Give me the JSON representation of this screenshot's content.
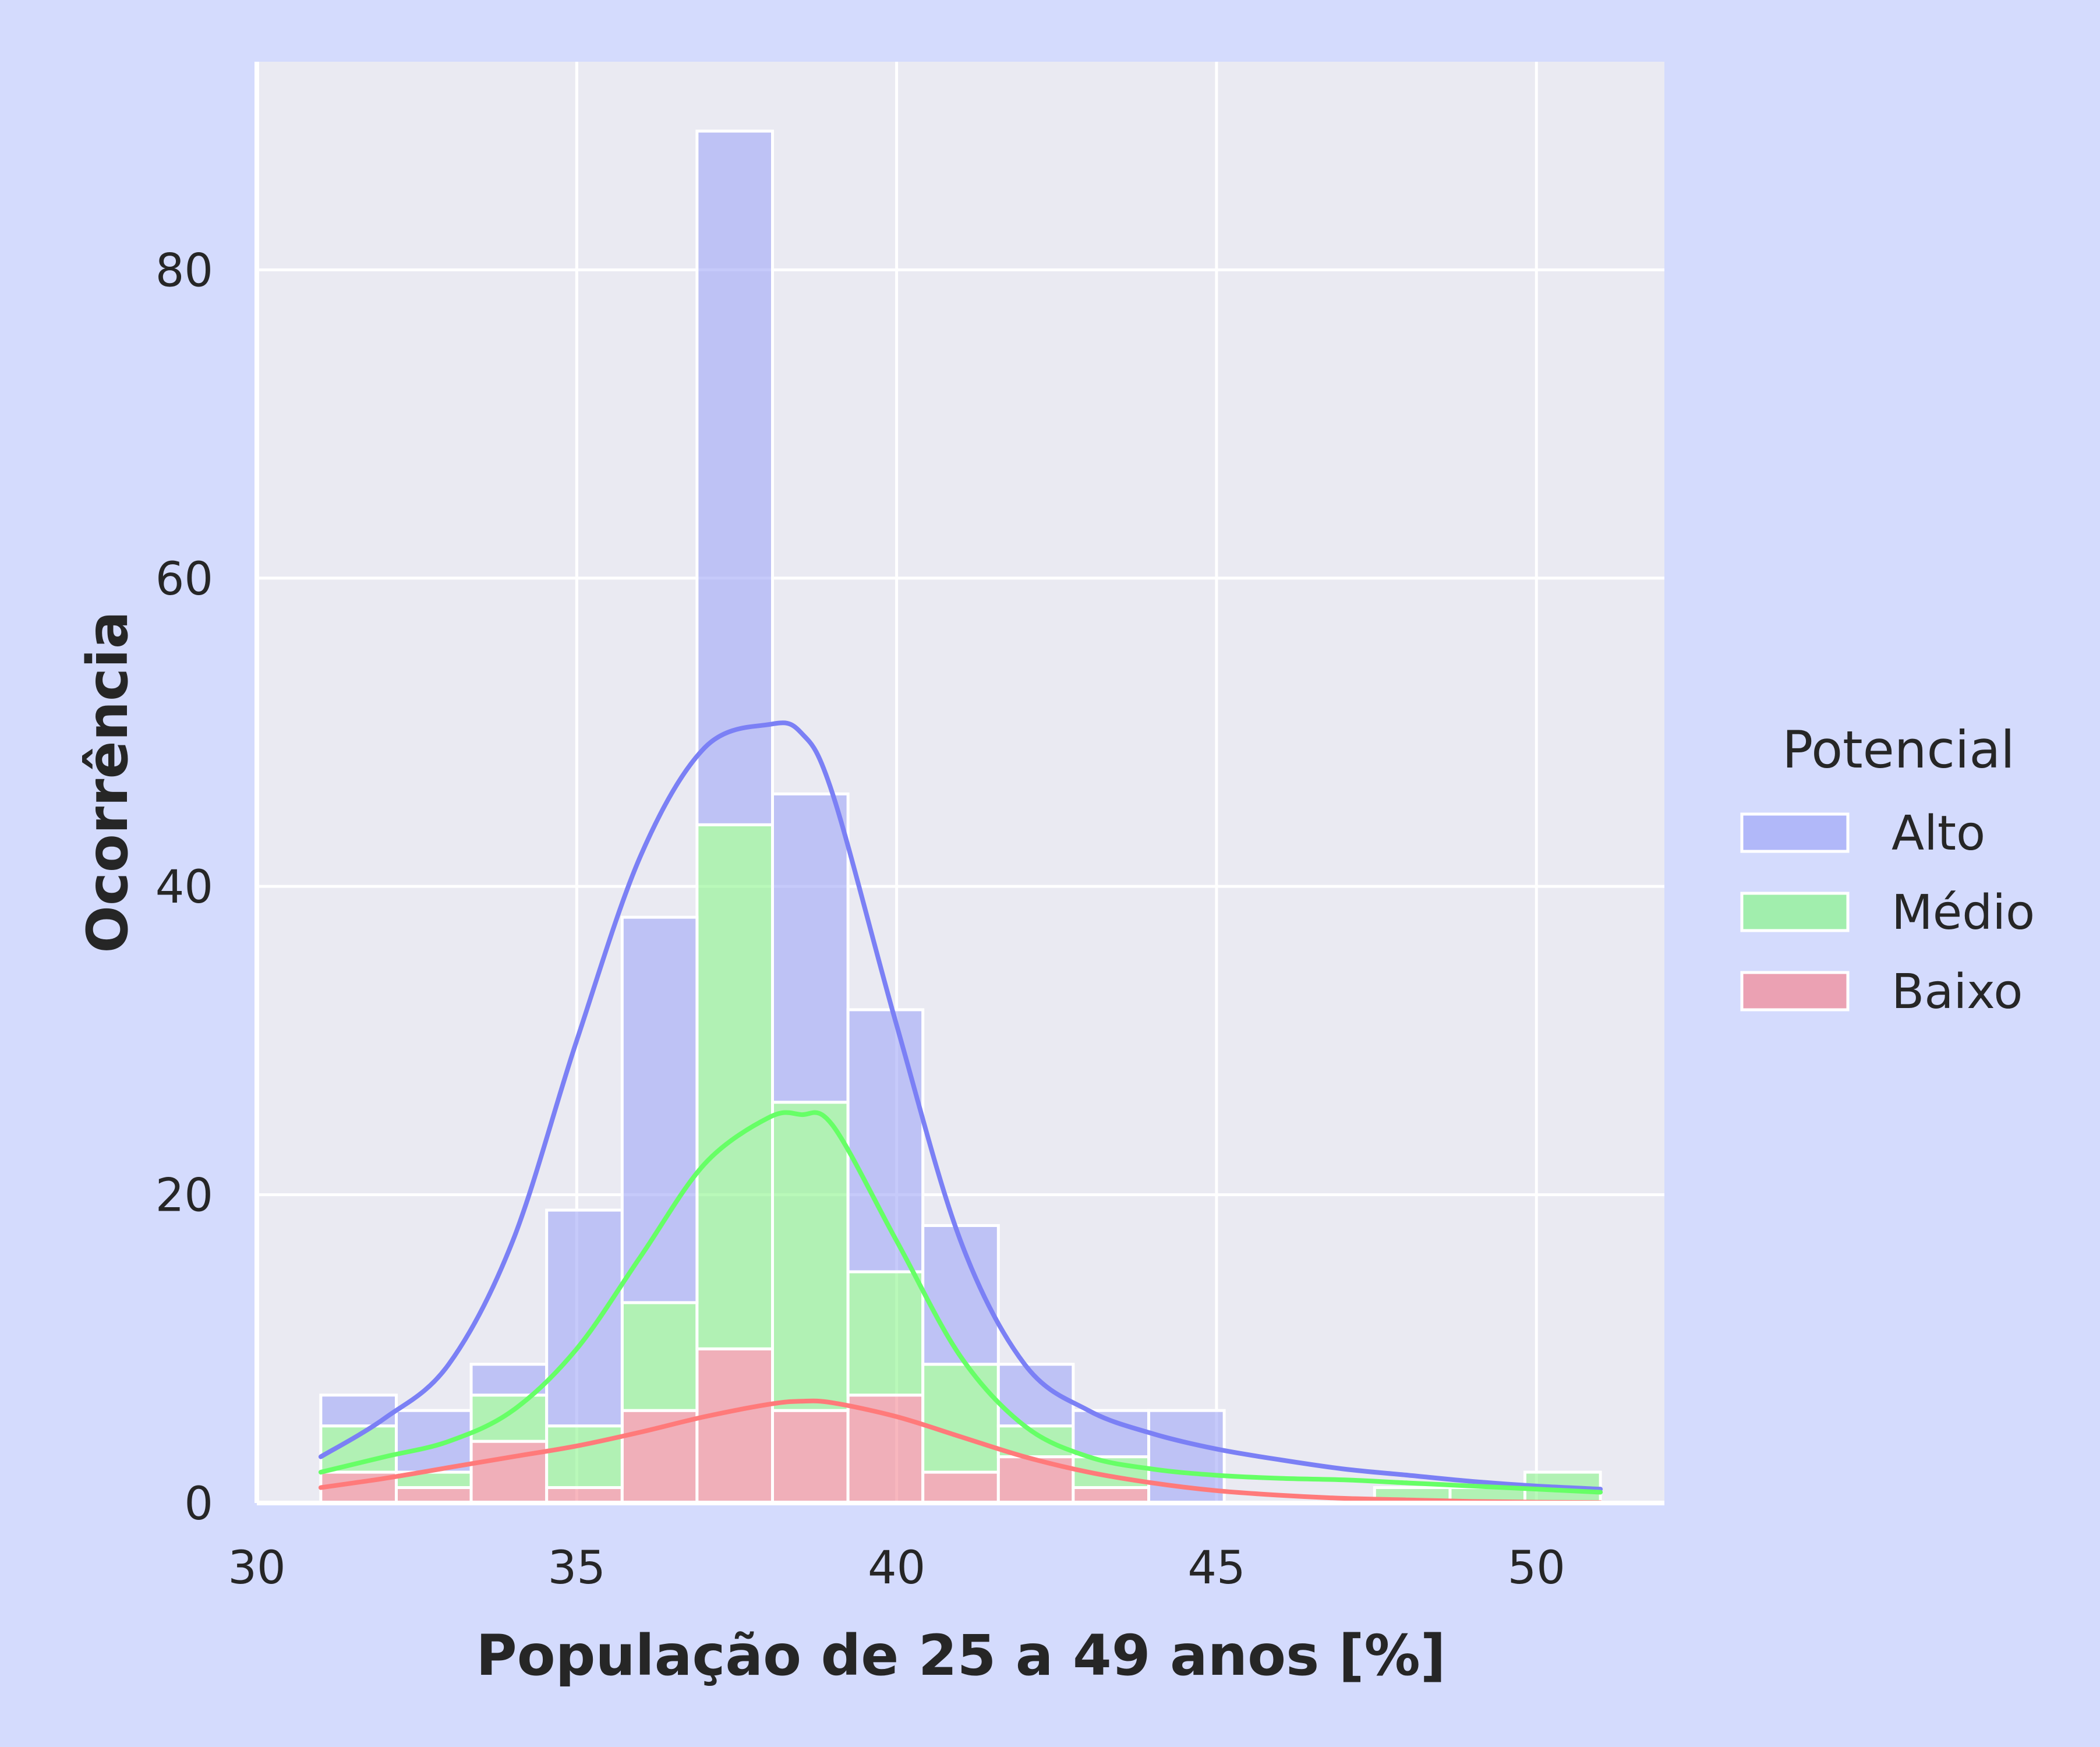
{
  "colors": {
    "figure_background": "#d4dbfd",
    "plot_background": "#eaeaf2",
    "grid": "#ffffff",
    "text": "#262626"
  },
  "chart_data": {
    "type": "bar",
    "subtype": "stacked histogram with kde",
    "xlabel": "População de 25 a 49 anos [%]",
    "ylabel": "Ocorrência",
    "xlim": [
      30,
      52
    ],
    "ylim": [
      0,
      93.5
    ],
    "xticks": [
      "30",
      "35",
      "40",
      "45",
      "50"
    ],
    "yticks": [
      "0",
      "20",
      "40",
      "60",
      "80"
    ],
    "grid": true,
    "legend": {
      "title": "Potencial",
      "position": "right"
    },
    "bin_edges": [
      31.0,
      32.18,
      33.35,
      34.53,
      35.71,
      36.88,
      38.06,
      39.24,
      40.41,
      41.59,
      42.76,
      43.94,
      45.12,
      46.29,
      47.47,
      48.65,
      49.82,
      51.0
    ],
    "series": [
      {
        "name": "Baixo",
        "color": "#f48a96",
        "line_color": "#ff7a7a",
        "counts": [
          2,
          1,
          4,
          1,
          6,
          10,
          6,
          7,
          2,
          3,
          1,
          0,
          0,
          0,
          0,
          0,
          0
        ]
      },
      {
        "name": "Médio",
        "color": "#8ef58e",
        "line_color": "#66ff66",
        "counts": [
          3,
          1,
          3,
          4,
          7,
          34,
          20,
          8,
          7,
          2,
          2,
          0,
          0,
          0,
          1,
          1,
          2
        ]
      },
      {
        "name": "Alto",
        "color": "#a3aaf7",
        "line_color": "#7b80f5",
        "counts": [
          2,
          4,
          2,
          14,
          25,
          45,
          20,
          17,
          9,
          4,
          3,
          6,
          0,
          0,
          0,
          0,
          0
        ]
      }
    ],
    "kde": {
      "x": [
        31,
        32,
        33,
        34,
        35,
        36,
        37,
        38,
        38.5,
        39,
        40,
        41,
        42,
        43,
        44,
        45,
        46,
        47,
        48,
        49,
        50,
        51
      ],
      "Alto": [
        3,
        5.5,
        9,
        17,
        30,
        42,
        49,
        50.5,
        50,
        46,
        31,
        17,
        9,
        6,
        4.5,
        3.5,
        2.8,
        2.2,
        1.8,
        1.4,
        1.1,
        0.9
      ],
      "Médio": [
        2,
        3,
        4,
        6,
        10,
        16,
        22,
        25,
        25.2,
        24.5,
        17,
        9.5,
        5,
        3,
        2.2,
        1.8,
        1.6,
        1.5,
        1.3,
        1.1,
        0.9,
        0.7
      ],
      "Baixo": [
        1,
        1.6,
        2.3,
        3,
        3.7,
        4.6,
        5.6,
        6.4,
        6.6,
        6.5,
        5.6,
        4.3,
        3,
        2,
        1.3,
        0.8,
        0.5,
        0.3,
        0.2,
        0.1,
        0.05,
        0.03
      ]
    }
  }
}
